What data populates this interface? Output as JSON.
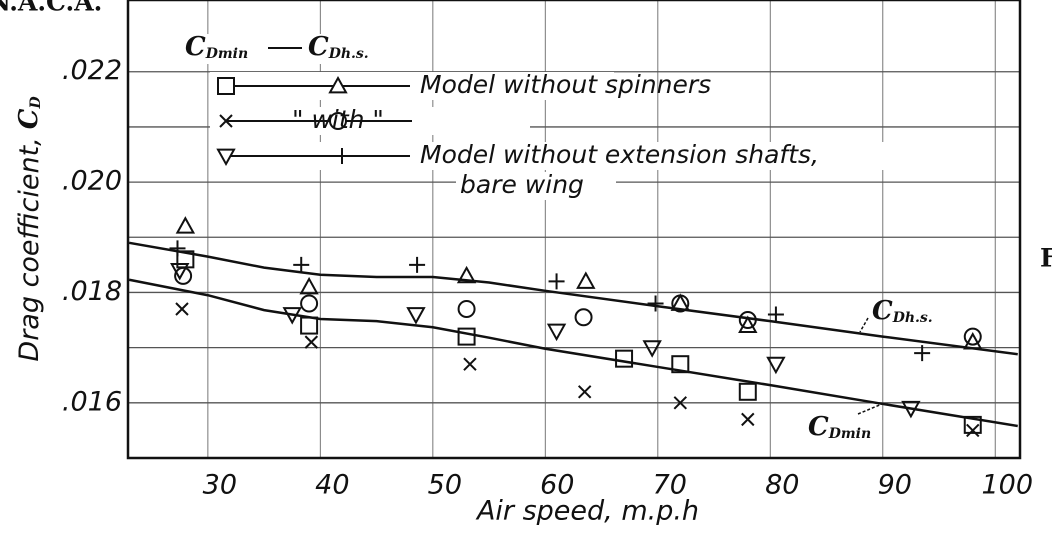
{
  "chart_data": {
    "type": "scatter",
    "corner_text": "N.A.C.A.",
    "edge_text": "F",
    "y_label": {
      "text": "Drag coefficient,",
      "symbol": "C",
      "subscript": "D"
    },
    "x_label": "Air speed, m.p.h",
    "xlim": [
      22.9,
      102.2
    ],
    "ylim": [
      0.015,
      0.0233
    ],
    "xticks": [
      30,
      40,
      50,
      60,
      70,
      80,
      90,
      100
    ],
    "yticks": [
      {
        "value": 0.016,
        "label": ".016"
      },
      {
        "value": 0.018,
        "label": ".018"
      },
      {
        "value": 0.02,
        "label": ".020"
      },
      {
        "value": 0.022,
        "label": ".022"
      }
    ],
    "minor_grid": [
      0.017,
      0.019,
      0.021
    ],
    "grid": true,
    "legend_headers": [
      {
        "symbol": "C",
        "subscript": "Dmin"
      },
      {
        "symbol": "C",
        "subscript": "Dh.s."
      }
    ],
    "legend_rows": [
      {
        "lines": [
          "Model without spinners"
        ],
        "markers": [
          0,
          1
        ]
      },
      {
        "lines": [
          "\"  with  \""
        ],
        "markers": [
          2,
          3
        ]
      },
      {
        "lines": [
          "Model without extension shafts,",
          "bare wing"
        ],
        "markers": [
          4,
          5
        ]
      }
    ],
    "series": [
      {
        "marker": "square",
        "color": "#111",
        "x": [
          28,
          39,
          53,
          67,
          72,
          78,
          98
        ],
        "values": [
          0.0186,
          0.0174,
          0.0172,
          0.0168,
          0.0167,
          0.0162,
          0.0156
        ]
      },
      {
        "marker": "triangle",
        "color": "#111",
        "x": [
          28,
          39,
          53,
          63.6,
          72,
          78,
          98
        ],
        "values": [
          0.0192,
          0.0181,
          0.0183,
          0.0182,
          0.0178,
          0.0174,
          0.0171
        ]
      },
      {
        "marker": "x",
        "color": "#111",
        "x": [
          27.7,
          39.2,
          53.3,
          63.5,
          72,
          78,
          98
        ],
        "values": [
          0.0177,
          0.0171,
          0.0167,
          0.0162,
          0.016,
          0.0157,
          0.0155
        ]
      },
      {
        "marker": "circle",
        "color": "#111",
        "x": [
          27.8,
          39,
          53,
          63.4,
          72,
          78,
          98
        ],
        "values": [
          0.0183,
          0.0178,
          0.0177,
          0.01755,
          0.0178,
          0.0175,
          0.0172
        ]
      },
      {
        "marker": "triangle-down",
        "color": "#111",
        "x": [
          27.5,
          37.5,
          48.5,
          61,
          69.5,
          80.5,
          92.5
        ],
        "values": [
          0.0184,
          0.0176,
          0.0176,
          0.0173,
          0.017,
          0.0167,
          0.0159
        ]
      },
      {
        "marker": "plus",
        "color": "#111",
        "x": [
          27.3,
          38.3,
          48.6,
          61,
          69.8,
          80.5,
          93.5
        ],
        "values": [
          0.0188,
          0.0185,
          0.0185,
          0.0182,
          0.0178,
          0.0176,
          0.0169
        ]
      }
    ],
    "curves": [
      {
        "symbol": "C",
        "subscript": "Dh.s.",
        "x": [
          23,
          30,
          35,
          40,
          45,
          50,
          55,
          60,
          70,
          80,
          90,
          102
        ],
        "values": [
          0.0189,
          0.01865,
          0.01845,
          0.01832,
          0.01828,
          0.01828,
          0.01818,
          0.01803,
          0.01775,
          0.01748,
          0.0172,
          0.01688
        ]
      },
      {
        "symbol": "C",
        "subscript": "Dmin",
        "x": [
          23,
          30,
          35,
          40,
          45,
          50,
          55,
          60,
          70,
          80,
          90,
          102
        ],
        "values": [
          0.01823,
          0.01795,
          0.01768,
          0.01752,
          0.01748,
          0.01737,
          0.01718,
          0.01698,
          0.01665,
          0.01632,
          0.01598,
          0.01558
        ]
      }
    ]
  }
}
